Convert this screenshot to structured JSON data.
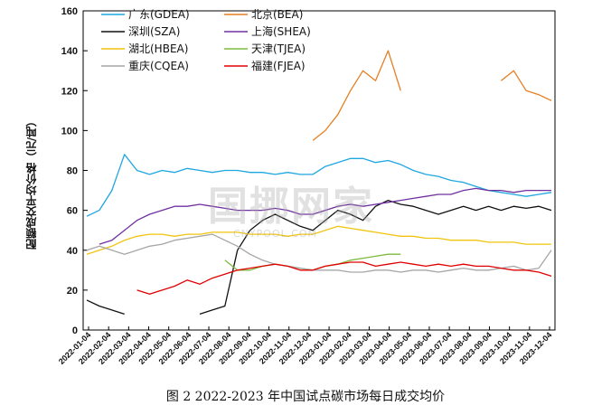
{
  "caption": "图 2 2022-2023 年中国试点碳市场每日成交均价",
  "watermark": {
    "main": "国挪网家",
    "sub": "CNYPOOL.COM"
  },
  "chart_data": {
    "type": "line",
    "ylabel": "配额成交平均价格（元/吨）",
    "xlabel": "",
    "ylim": [
      0,
      160
    ],
    "y_ticks": [
      0,
      20,
      40,
      60,
      80,
      100,
      120,
      140,
      160
    ],
    "x_ticks": [
      "2022-01-04",
      "2022-02-04",
      "2022-03-04",
      "2022-04-04",
      "2022-05-04",
      "2022-06-04",
      "2022-07-04",
      "2022-08-04",
      "2022-09-04",
      "2022-10-04",
      "2022-11-04",
      "2022-12-04",
      "2023-01-04",
      "2023-02-04",
      "2023-03-04",
      "2023-04-04",
      "2023-05-04",
      "2023-06-04",
      "2023-07-04",
      "2023-08-04",
      "2023-09-04",
      "2023-10-04",
      "2023-11-04",
      "2023-12-04"
    ],
    "legend_position": "top-left",
    "grid": false,
    "series": [
      {
        "name": "广东(GDEA)",
        "color": "#1ea7e0",
        "values": [
          57,
          60,
          70,
          88,
          80,
          78,
          80,
          79,
          81,
          80,
          79,
          80,
          80,
          79,
          79,
          78,
          79,
          78,
          78,
          82,
          84,
          86,
          86,
          84,
          85,
          83,
          80,
          78,
          77,
          75,
          74,
          72,
          70,
          69,
          68,
          67,
          68,
          69
        ]
      },
      {
        "name": "北京(BEA)",
        "color": "#e67e22",
        "values": [
          null,
          null,
          null,
          null,
          null,
          null,
          null,
          null,
          null,
          null,
          null,
          null,
          null,
          null,
          null,
          null,
          null,
          null,
          95,
          100,
          108,
          120,
          130,
          125,
          140,
          120,
          null,
          null,
          null,
          null,
          null,
          null,
          null,
          125,
          130,
          120,
          118,
          115
        ]
      },
      {
        "name": "深圳(SZA)",
        "color": "#111111",
        "values": [
          15,
          12,
          10,
          8,
          null,
          null,
          null,
          null,
          null,
          8,
          10,
          12,
          40,
          50,
          55,
          58,
          55,
          52,
          50,
          55,
          60,
          58,
          55,
          62,
          65,
          63,
          62,
          60,
          58,
          60,
          62,
          60,
          62,
          60,
          62,
          61,
          62,
          60
        ]
      },
      {
        "name": "上海(SHEA)",
        "color": "#7030a0",
        "values": [
          null,
          43,
          45,
          50,
          55,
          58,
          60,
          62,
          62,
          63,
          62,
          61,
          60,
          60,
          60,
          61,
          60,
          58,
          58,
          60,
          62,
          63,
          62,
          63,
          64,
          65,
          66,
          67,
          68,
          68,
          70,
          71,
          70,
          70,
          69,
          70,
          70,
          70
        ]
      },
      {
        "name": "湖北(HBEA)",
        "color": "#f1c40f",
        "values": [
          38,
          40,
          42,
          45,
          47,
          48,
          48,
          47,
          48,
          48,
          49,
          49,
          49,
          48,
          48,
          48,
          47,
          48,
          48,
          50,
          52,
          51,
          50,
          49,
          48,
          47,
          47,
          46,
          46,
          45,
          45,
          45,
          44,
          44,
          44,
          43,
          43,
          43
        ]
      },
      {
        "name": "天津(TJEA)",
        "color": "#7dbb3c",
        "values": [
          null,
          null,
          null,
          null,
          null,
          null,
          null,
          null,
          null,
          null,
          null,
          35,
          30,
          30,
          32,
          33,
          32,
          31,
          30,
          32,
          33,
          35,
          36,
          37,
          38,
          38,
          null,
          null,
          null,
          null,
          null,
          null,
          null,
          null,
          null,
          null,
          null,
          null
        ]
      },
      {
        "name": "重庆(CQEA)",
        "color": "#a6a6a6",
        "values": [
          40,
          42,
          40,
          38,
          40,
          42,
          43,
          45,
          46,
          47,
          48,
          45,
          42,
          38,
          35,
          33,
          32,
          31,
          30,
          30,
          30,
          29,
          29,
          30,
          30,
          29,
          30,
          30,
          29,
          30,
          31,
          30,
          30,
          31,
          32,
          30,
          31,
          40
        ]
      },
      {
        "name": "福建(FJEA)",
        "color": "#e00000",
        "values": [
          null,
          null,
          null,
          null,
          20,
          18,
          20,
          22,
          25,
          23,
          26,
          28,
          30,
          31,
          32,
          33,
          32,
          30,
          30,
          32,
          33,
          34,
          34,
          32,
          33,
          34,
          33,
          32,
          33,
          32,
          33,
          32,
          32,
          31,
          30,
          30,
          29,
          27
        ]
      }
    ]
  }
}
